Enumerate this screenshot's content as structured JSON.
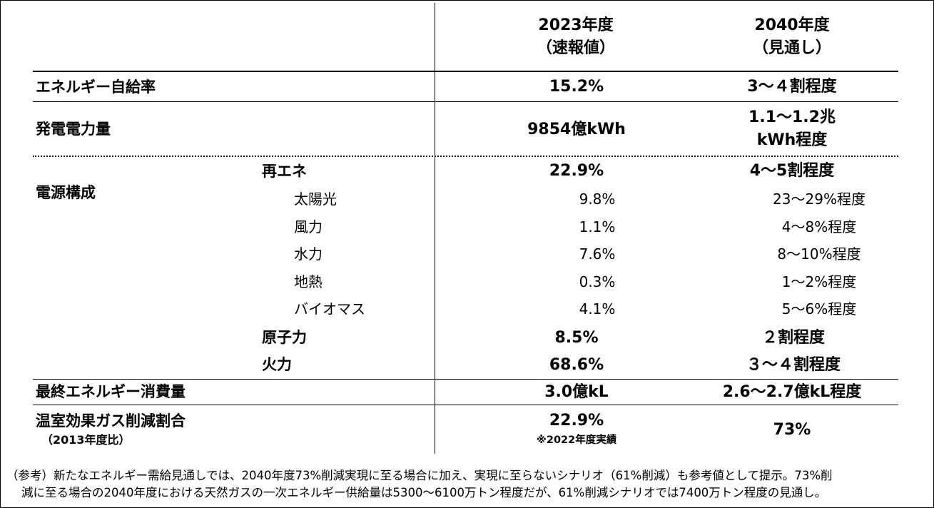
{
  "header": {
    "col2023": "2023年度",
    "col2023_sub": "（速報値）",
    "col2040": "2040年度",
    "col2040_sub": "（見通し）"
  },
  "rows": {
    "self_sufficiency": {
      "label": "エネルギー自給率",
      "v2023": "15.2%",
      "v2040": "3～４割程度"
    },
    "generation": {
      "label": "発電電力量",
      "v2023": "9854億kWh",
      "v2040_line1": "1.1～1.2兆",
      "v2040_line2": "kWh程度"
    },
    "mix": {
      "label": "電源構成",
      "renewables": {
        "label": "再エネ",
        "v2023": "22.9%",
        "v2040": "4～5割程度"
      },
      "solar": {
        "label": "太陽光",
        "v2023": "9.8%",
        "v2040": "23～29%程度"
      },
      "wind": {
        "label": "風力",
        "v2023": "1.1%",
        "v2040": "4～8%程度"
      },
      "hydro": {
        "label": "水力",
        "v2023": "7.6%",
        "v2040": "8～10%程度"
      },
      "geothermal": {
        "label": "地熱",
        "v2023": "0.3%",
        "v2040": "1～2%程度"
      },
      "biomass": {
        "label": "バイオマス",
        "v2023": "4.1%",
        "v2040": "5～6%程度"
      },
      "nuclear": {
        "label": "原子力",
        "v2023": "8.5%",
        "v2040": "２割程度"
      },
      "thermal": {
        "label": "火力",
        "v2023": "68.6%",
        "v2040": "３～４割程度"
      }
    },
    "final_consumption": {
      "label": "最終エネルギー消費量",
      "v2023": "3.0億kL",
      "v2040": "2.6～2.7億kL程度"
    },
    "ghg": {
      "label": "温室効果ガス削減割合",
      "label_sub": "（2013年度比）",
      "v2023": "22.9%",
      "v2023_note": "※2022年度実績",
      "v2040": "73%"
    }
  },
  "footnote": {
    "line1": "（参考）新たなエネルギー需給見通しでは、2040年度73%削減実現に至る場合に加え、実現に至らないシナリオ（61%削減）も参考値として提示。73%削",
    "line2": "減に至る場合の2040年度における天然ガスの一次エネルギー供給量は5300～6100万トン程度だが、61%削減シナリオでは7400万トン程度の見通し。"
  }
}
